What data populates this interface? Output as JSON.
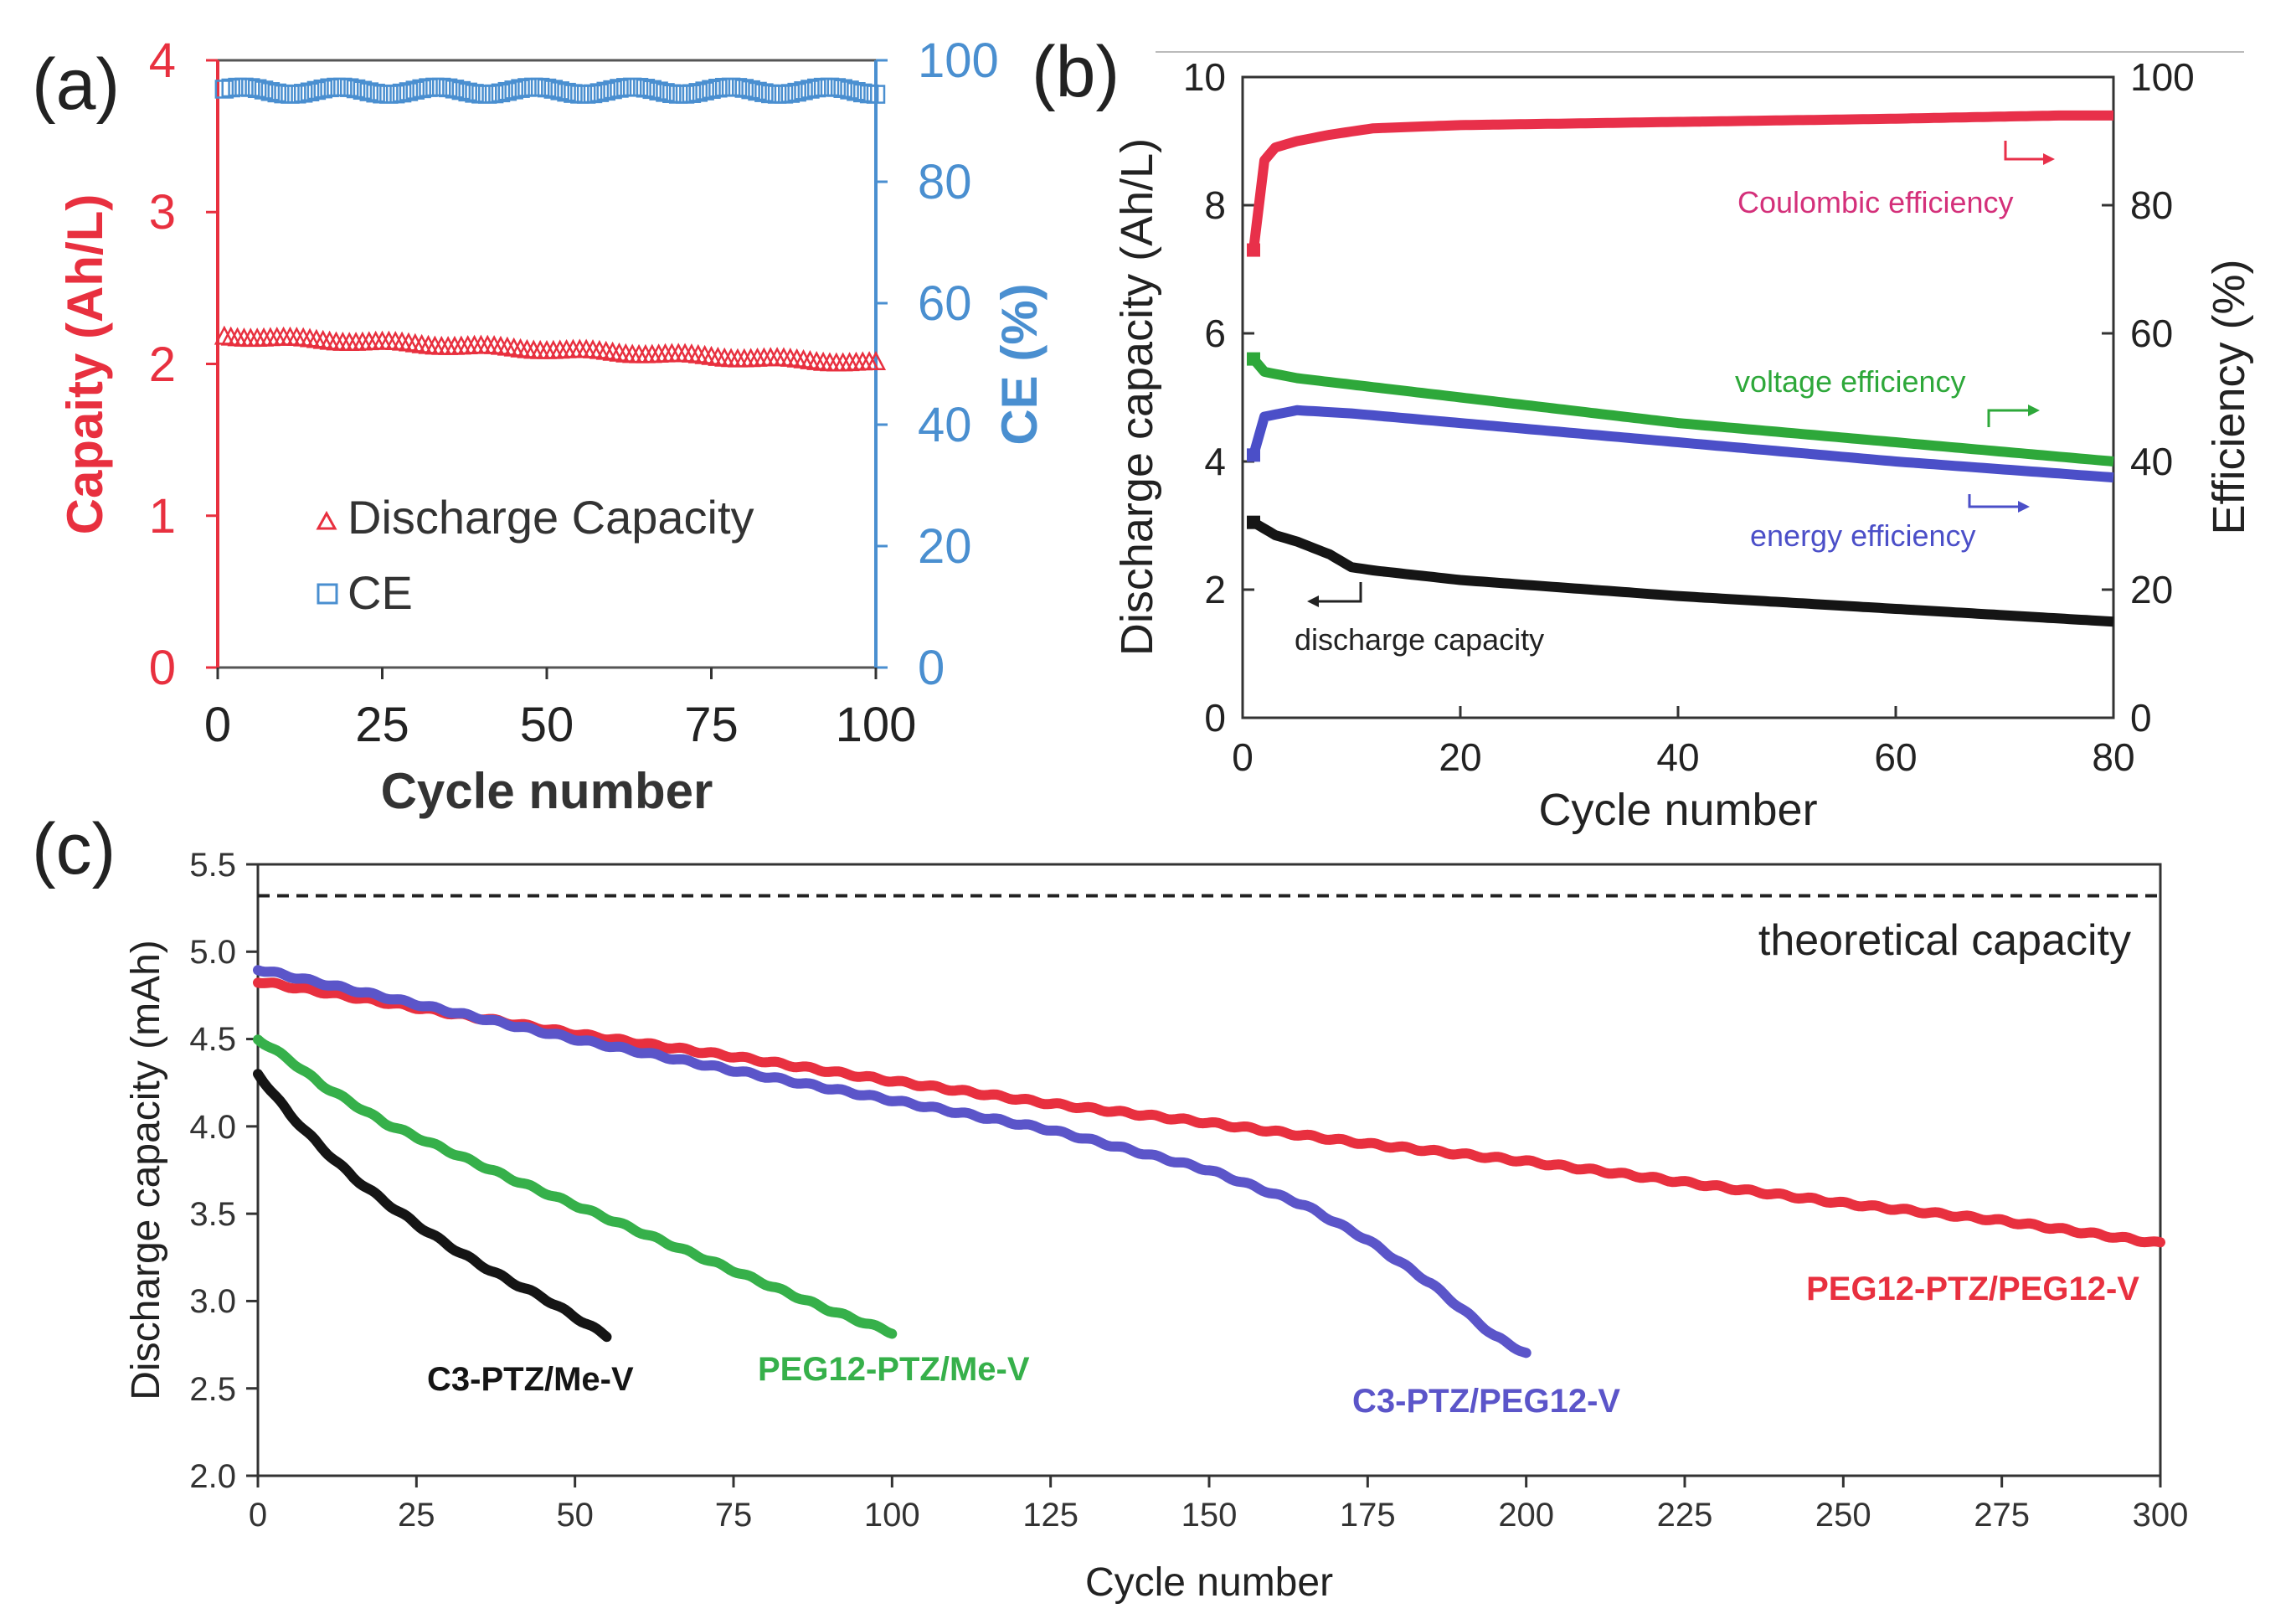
{
  "colors": {
    "red": "#e8303f",
    "blue": "#4a8fd0",
    "coulombic": "#e8304a",
    "coulombic_label": "#d4307a",
    "green": "#2ea83a",
    "indigo": "#4b4fc8",
    "black": "#151515",
    "c_green": "#36b04a",
    "c_purple": "#5b55c9"
  },
  "chart_data": [
    {
      "panel": "(a)",
      "type": "scatter",
      "xlabel": "Cycle number",
      "ylabel_left": "Capaity (Ah/L)",
      "ylabel_right": "CE (%)",
      "xlim": [
        0,
        100
      ],
      "ylim_left": [
        0,
        4
      ],
      "ylim_right": [
        0,
        100
      ],
      "xticks": [
        "0",
        "25",
        "50",
        "75",
        "100"
      ],
      "yticks_left": [
        "0",
        "1",
        "2",
        "3",
        "4"
      ],
      "yticks_right": [
        "0",
        "20",
        "40",
        "60",
        "80",
        "100"
      ],
      "legend": [
        {
          "marker": "triangle",
          "label": "Discharge Capacity"
        },
        {
          "marker": "square",
          "label": "CE"
        }
      ],
      "series": [
        {
          "name": "Discharge Capacity",
          "axis": "left",
          "x": [
            1,
            100
          ],
          "y": [
            2.18,
            2.0
          ]
        },
        {
          "name": "CE",
          "axis": "right",
          "x": [
            1,
            100
          ],
          "y": [
            95,
            95
          ]
        }
      ]
    },
    {
      "panel": "(b)",
      "type": "line",
      "xlabel": "Cycle number",
      "ylabel_left": "Discharge capacity (Ah/L)",
      "ylabel_right": "Efficiency (%)",
      "xlim": [
        0,
        80
      ],
      "ylim_left": [
        0,
        10
      ],
      "ylim_right": [
        0,
        100
      ],
      "xticks": [
        "0",
        "20",
        "40",
        "60",
        "80"
      ],
      "yticks_left": [
        "0",
        "2",
        "4",
        "6",
        "8",
        "10"
      ],
      "yticks_right": [
        "0",
        "20",
        "40",
        "60",
        "80",
        "100"
      ],
      "annotations": [
        "Coulombic efficiency",
        "voltage efficiency",
        "energy efficiency",
        "discharge capacity"
      ],
      "series": [
        {
          "name": "Coulombic efficiency",
          "axis": "right",
          "x": [
            1,
            2,
            3,
            5,
            8,
            12,
            20,
            40,
            60,
            75,
            80
          ],
          "y": [
            73,
            87,
            89,
            90,
            91,
            92,
            92.5,
            93,
            93.5,
            94,
            94
          ]
        },
        {
          "name": "voltage efficiency",
          "axis": "right",
          "x": [
            1,
            2,
            5,
            10,
            20,
            40,
            60,
            80
          ],
          "y": [
            56,
            54,
            53,
            52,
            50,
            46,
            43,
            40
          ]
        },
        {
          "name": "energy efficiency",
          "axis": "right",
          "x": [
            1,
            2,
            5,
            10,
            20,
            40,
            60,
            80
          ],
          "y": [
            41,
            47,
            48,
            47.5,
            46,
            43,
            40,
            37.5
          ]
        },
        {
          "name": "discharge capacity",
          "axis": "left",
          "x": [
            1,
            3,
            5,
            8,
            10,
            12,
            20,
            40,
            60,
            80
          ],
          "y": [
            3.05,
            2.85,
            2.75,
            2.55,
            2.35,
            2.3,
            2.15,
            1.9,
            1.7,
            1.5
          ]
        }
      ]
    },
    {
      "panel": "(c)",
      "type": "line",
      "xlabel": "Cycle number",
      "ylabel": "Discharge capacity (mAh)",
      "xlim": [
        0,
        300
      ],
      "ylim": [
        2.0,
        5.5
      ],
      "xticks": [
        "0",
        "25",
        "50",
        "75",
        "100",
        "125",
        "150",
        "175",
        "200",
        "225",
        "250",
        "275",
        "300"
      ],
      "yticks": [
        "2.0",
        "2.5",
        "3.0",
        "3.5",
        "4.0",
        "4.5",
        "5.0",
        "5.5"
      ],
      "reference_line": {
        "label": "theoretical capacity",
        "y": 5.32
      },
      "series": [
        {
          "name": "C3-PTZ/Me-V",
          "x": [
            0,
            5,
            10,
            15,
            20,
            25,
            30,
            35,
            40,
            45,
            50,
            55
          ],
          "y": [
            4.3,
            4.07,
            3.88,
            3.71,
            3.57,
            3.44,
            3.32,
            3.21,
            3.11,
            3.02,
            2.91,
            2.8
          ]
        },
        {
          "name": "PEG12-PTZ/Me-V",
          "x": [
            0,
            5,
            10,
            20,
            30,
            40,
            50,
            60,
            70,
            80,
            90,
            100
          ],
          "y": [
            4.5,
            4.38,
            4.24,
            4.02,
            3.86,
            3.7,
            3.55,
            3.4,
            3.25,
            3.1,
            2.95,
            2.82
          ]
        },
        {
          "name": "C3-PTZ/PEG12-V",
          "x": [
            0,
            25,
            50,
            75,
            100,
            125,
            150,
            165,
            175,
            185,
            195,
            200
          ],
          "y": [
            4.9,
            4.7,
            4.5,
            4.32,
            4.15,
            3.98,
            3.75,
            3.55,
            3.35,
            3.1,
            2.8,
            2.7
          ]
        },
        {
          "name": "PEG12-PTZ/PEG12-V",
          "x": [
            0,
            25,
            50,
            75,
            100,
            125,
            150,
            175,
            200,
            225,
            250,
            275,
            300
          ],
          "y": [
            4.83,
            4.68,
            4.53,
            4.4,
            4.26,
            4.13,
            4.02,
            3.9,
            3.8,
            3.68,
            3.56,
            3.46,
            3.33
          ]
        }
      ]
    }
  ]
}
